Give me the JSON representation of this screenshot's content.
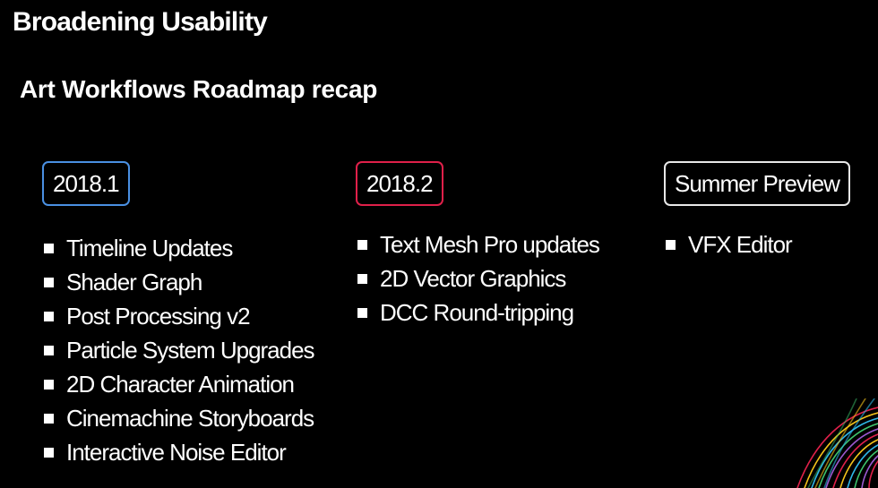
{
  "slide": {
    "title": "Broadening Usability",
    "subtitle": "Art Workflows Roadmap recap"
  },
  "columns": [
    {
      "badge": "2018.1",
      "accent": "#4a90e2",
      "items": [
        "Timeline Updates",
        "Shader Graph",
        "Post Processing v2",
        "Particle System Upgrades",
        "2D Character Animation",
        "Cinemachine Storyboards",
        "Interactive Noise Editor"
      ]
    },
    {
      "badge": "2018.2",
      "accent": "#e0204a",
      "items": [
        "Text Mesh Pro updates",
        "2D Vector Graphics",
        "DCC Round-tripping"
      ]
    },
    {
      "badge": "Summer Preview",
      "accent": "#e8e8e8",
      "items": [
        "VFX Editor"
      ]
    }
  ],
  "decoration": {
    "icon": "colorful-swirl-graphic",
    "colors": [
      "#e0204a",
      "#f2c21b",
      "#2fb8e8",
      "#3ec46d",
      "#9b59d0"
    ]
  }
}
